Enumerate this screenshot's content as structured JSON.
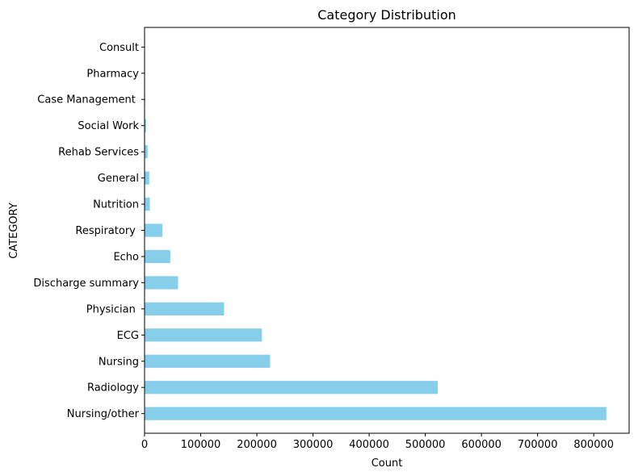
{
  "chart_data": {
    "type": "bar",
    "orientation": "horizontal",
    "title": "Category Distribution",
    "xlabel": "Count",
    "ylabel": "CATEGORY",
    "categories": [
      "Nursing/other",
      "Radiology",
      "Nursing",
      "ECG",
      "Physician ",
      "Discharge summary",
      "Echo",
      "Respiratory ",
      "Nutrition",
      "General",
      "Rehab Services",
      "Social Work",
      "Case Management ",
      "Pharmacy",
      "Consult"
    ],
    "values": [
      822497,
      522279,
      223556,
      209051,
      141624,
      59652,
      45794,
      31739,
      9418,
      8301,
      5431,
      2670,
      967,
      103,
      98
    ],
    "xlim": [
      0,
      863000
    ],
    "xticks": [
      0,
      100000,
      200000,
      300000,
      400000,
      500000,
      600000,
      700000,
      800000
    ],
    "bar_color": "#87ceeb",
    "grid": false,
    "legend": "none"
  }
}
